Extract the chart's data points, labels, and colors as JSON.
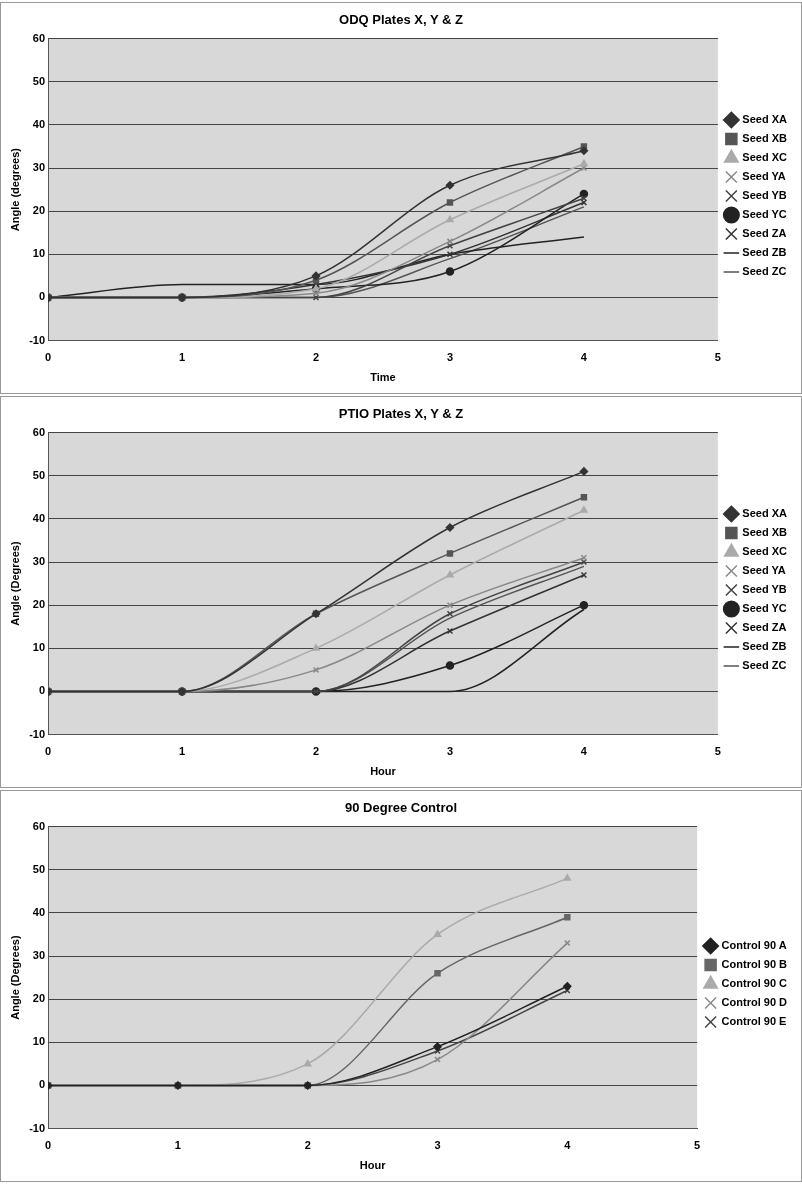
{
  "chart_data": [
    {
      "type": "line",
      "title": "ODQ Plates X, Y & Z",
      "xlabel": "Time",
      "ylabel": "Angle (degrees)",
      "x": [
        0,
        1,
        2,
        3,
        4
      ],
      "xlim": [
        0,
        5
      ],
      "xticks": [
        0,
        1,
        2,
        3,
        4,
        5
      ],
      "ylim": [
        -10,
        60
      ],
      "yticks": [
        -10,
        0,
        10,
        20,
        30,
        40,
        50,
        60
      ],
      "grid": "y",
      "legend": "right",
      "series": [
        {
          "name": "Seed XA",
          "color": "#333333",
          "marker": "diamond",
          "values": [
            0,
            0,
            5,
            26,
            34
          ]
        },
        {
          "name": "Seed XB",
          "color": "#555555",
          "marker": "square",
          "values": [
            0,
            0,
            4,
            22,
            35
          ]
        },
        {
          "name": "Seed XC",
          "color": "#aaaaaa",
          "marker": "triangle",
          "values": [
            0,
            0,
            2,
            18,
            31
          ]
        },
        {
          "name": "Seed YA",
          "color": "#888888",
          "marker": "cross",
          "values": [
            0,
            0,
            1,
            13,
            30
          ]
        },
        {
          "name": "Seed YB",
          "color": "#444444",
          "marker": "cross",
          "values": [
            0,
            0,
            0,
            12,
            23
          ]
        },
        {
          "name": "Seed YC",
          "color": "#222222",
          "marker": "circle",
          "values": [
            0,
            0,
            2,
            6,
            24
          ]
        },
        {
          "name": "Seed ZA",
          "color": "#333333",
          "marker": "cross",
          "values": [
            0,
            0,
            3,
            10,
            22
          ]
        },
        {
          "name": "Seed ZB",
          "color": "#222222",
          "marker": "none",
          "values": [
            0,
            3,
            3,
            10,
            14
          ]
        },
        {
          "name": "Seed ZC",
          "color": "#555555",
          "marker": "none",
          "values": [
            0,
            0,
            0,
            9,
            21
          ]
        }
      ]
    },
    {
      "type": "line",
      "title": "PTIO Plates X, Y & Z",
      "xlabel": "Hour",
      "ylabel": "Angle (Degrees)",
      "x": [
        0,
        1,
        2,
        3,
        4
      ],
      "xlim": [
        0,
        5
      ],
      "xticks": [
        0,
        1,
        2,
        3,
        4,
        5
      ],
      "ylim": [
        -10,
        60
      ],
      "yticks": [
        -10,
        0,
        10,
        20,
        30,
        40,
        50,
        60
      ],
      "grid": "y",
      "legend": "right",
      "series": [
        {
          "name": "Seed XA",
          "color": "#333333",
          "marker": "diamond",
          "values": [
            0,
            0,
            18,
            38,
            51
          ]
        },
        {
          "name": "Seed XB",
          "color": "#555555",
          "marker": "square",
          "values": [
            0,
            0,
            18,
            32,
            45
          ]
        },
        {
          "name": "Seed XC",
          "color": "#aaaaaa",
          "marker": "triangle",
          "values": [
            0,
            0,
            10,
            27,
            42
          ]
        },
        {
          "name": "Seed YA",
          "color": "#888888",
          "marker": "cross",
          "values": [
            0,
            0,
            5,
            20,
            31
          ]
        },
        {
          "name": "Seed YB",
          "color": "#444444",
          "marker": "cross",
          "values": [
            0,
            0,
            0,
            18,
            30
          ]
        },
        {
          "name": "Seed YC",
          "color": "#222222",
          "marker": "circle",
          "values": [
            0,
            0,
            0,
            6,
            20
          ]
        },
        {
          "name": "Seed ZA",
          "color": "#333333",
          "marker": "cross",
          "values": [
            0,
            0,
            0,
            14,
            27
          ]
        },
        {
          "name": "Seed ZB",
          "color": "#222222",
          "marker": "none",
          "values": [
            0,
            0,
            0,
            0,
            19
          ]
        },
        {
          "name": "Seed ZC",
          "color": "#555555",
          "marker": "none",
          "values": [
            0,
            0,
            0,
            17,
            29
          ]
        }
      ]
    },
    {
      "type": "line",
      "title": "90 Degree Control",
      "xlabel": "Hour",
      "ylabel": "Angle (Degrees)",
      "x": [
        0,
        1,
        2,
        3,
        4
      ],
      "xlim": [
        0,
        5
      ],
      "xticks": [
        0,
        1,
        2,
        3,
        4,
        5
      ],
      "ylim": [
        -10,
        60
      ],
      "yticks": [
        -10,
        0,
        10,
        20,
        30,
        40,
        50,
        60
      ],
      "grid": "y",
      "legend": "right",
      "series": [
        {
          "name": "Control 90 A",
          "color": "#222222",
          "marker": "diamond",
          "values": [
            0,
            0,
            0,
            9,
            23
          ]
        },
        {
          "name": "Control 90 B",
          "color": "#666666",
          "marker": "square",
          "values": [
            0,
            0,
            0,
            26,
            39
          ]
        },
        {
          "name": "Control 90 C",
          "color": "#aaaaaa",
          "marker": "triangle",
          "values": [
            0,
            0,
            5,
            35,
            48
          ]
        },
        {
          "name": "Control 90 D",
          "color": "#888888",
          "marker": "cross",
          "values": [
            0,
            0,
            0,
            6,
            33
          ]
        },
        {
          "name": "Control 90 E",
          "color": "#444444",
          "marker": "cross",
          "values": [
            0,
            0,
            0,
            8,
            22
          ]
        }
      ]
    }
  ]
}
